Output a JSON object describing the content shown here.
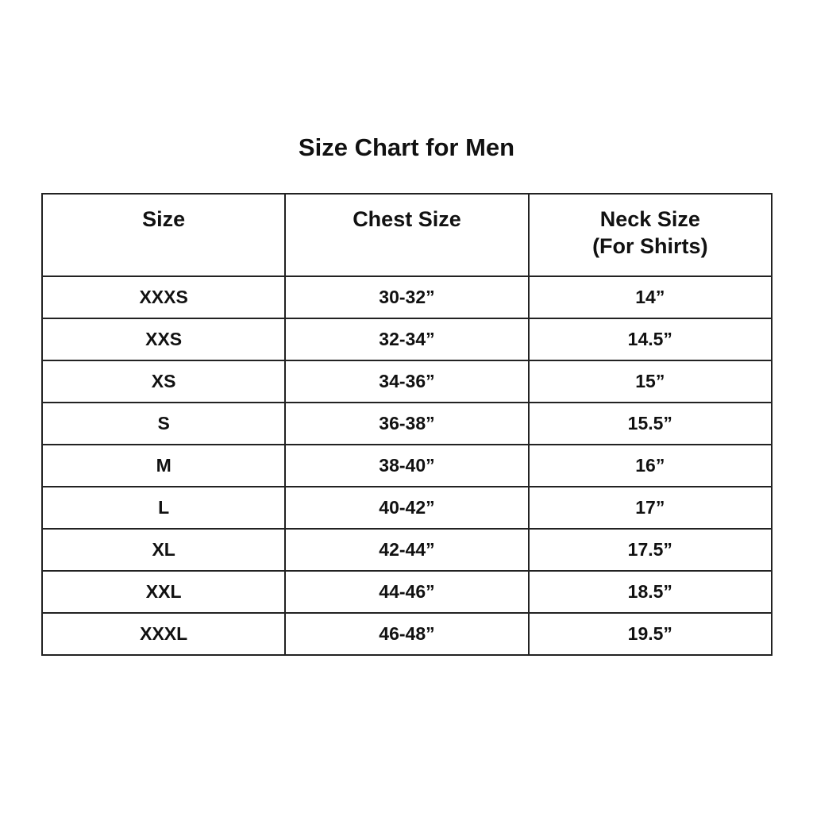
{
  "title": "Size Chart for Men",
  "headers": [
    "Size",
    "Chest Size",
    "Neck Size",
    "(For Shirts)"
  ],
  "rows": [
    [
      "XXXS",
      "30-32”",
      "14”"
    ],
    [
      "XXS",
      "32-34”",
      "14.5”"
    ],
    [
      "XS",
      "34-36”",
      "15”"
    ],
    [
      "S",
      "36-38”",
      "15.5”"
    ],
    [
      "M",
      "38-40”",
      "16”"
    ],
    [
      "L",
      "40-42”",
      "17”"
    ],
    [
      "XL",
      "42-44”",
      "17.5”"
    ],
    [
      "XXL",
      "44-46”",
      "18.5”"
    ],
    [
      "XXXL",
      "46-48”",
      "19.5”"
    ]
  ]
}
